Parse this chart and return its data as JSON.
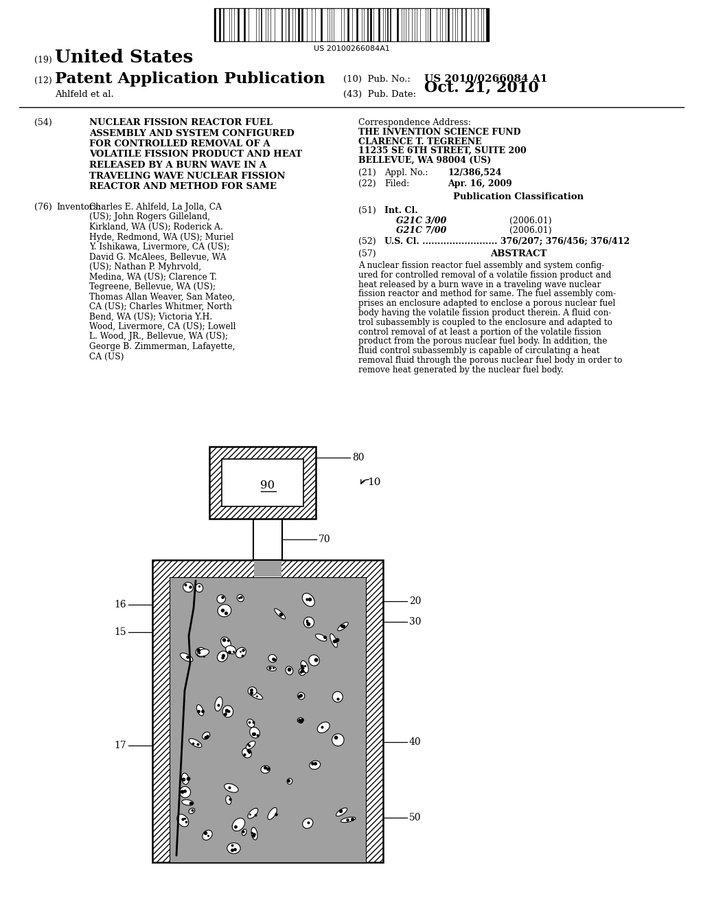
{
  "bg_color": "#ffffff",
  "barcode_text": "US 20100266084A1",
  "line19_label": "(19)",
  "united_states": "United States",
  "line12_label": "(12)",
  "patent_app_pub": "Patent Application Publication",
  "pub_no_label": "(10)  Pub. No.:",
  "pub_no_value": "US 2010/0266084 A1",
  "ahlfeld": "Ahlfeld et al.",
  "pub_date_label": "(43)  Pub. Date:",
  "pub_date_value": "Oct. 21, 2010",
  "title_num": "(54)",
  "title_lines": [
    "NUCLEAR FISSION REACTOR FUEL",
    "ASSEMBLY AND SYSTEM CONFIGURED",
    "FOR CONTROLLED REMOVAL OF A",
    "VOLATILE FISSION PRODUCT AND HEAT",
    "RELEASED BY A BURN WAVE IN A",
    "TRAVELING WAVE NUCLEAR FISSION",
    "REACTOR AND METHOD FOR SAME"
  ],
  "inventors_num": "(76)",
  "inventors_label": "Inventors:",
  "inventors_lines": [
    "Charles E. Ahlfeld, La Jolla, CA",
    "(US); John Rogers Gilleland,",
    "Kirkland, WA (US); Roderick A.",
    "Hyde, Redmond, WA (US); Muriel",
    "Y. Ishikawa, Livermore, CA (US);",
    "David G. McAlees, Bellevue, WA",
    "(US); Nathan P. Myhrvold,",
    "Medina, WA (US); Clarence T.",
    "Tegreene, Bellevue, WA (US);",
    "Thomas Allan Weaver, San Mateo,",
    "CA (US); Charles Whitmer, North",
    "Bend, WA (US); Victoria Y.H.",
    "Wood, Livermore, CA (US); Lowell",
    "L. Wood, JR., Bellevue, WA (US);",
    "George B. Zimmerman, Lafayette,",
    "CA (US)"
  ],
  "corr_addr_label": "Correspondence Address:",
  "corr_addr_lines": [
    "THE INVENTION SCIENCE FUND",
    "CLARENCE T. TEGREENE",
    "11235 SE 6TH STREET, SUITE 200",
    "BELLEVUE, WA 98004 (US)"
  ],
  "appl_num": "(21)",
  "appl_label": "Appl. No.:",
  "appl_value": "12/386,524",
  "filed_num": "(22)",
  "filed_label": "Filed:",
  "filed_value": "Apr. 16, 2009",
  "pub_class_header": "Publication Classification",
  "int_cl_num": "(51)",
  "int_cl_label": "Int. Cl.",
  "int_cl_g21c3": "G21C 3/00",
  "int_cl_g21c3_date": "(2006.01)",
  "int_cl_g21c7": "G21C 7/00",
  "int_cl_g21c7_date": "(2006.01)",
  "us_cl_num": "(52)",
  "us_cl_label": "U.S. Cl.",
  "us_cl_dots": " .........................",
  "us_cl_value": " 376/207; 376/456; 376/412",
  "abstract_num": "(57)",
  "abstract_label": "ABSTRACT",
  "abstract_lines": [
    "A nuclear fission reactor fuel assembly and system config-",
    "ured for controlled removal of a volatile fission product and",
    "heat released by a burn wave in a traveling wave nuclear",
    "fission reactor and method for same. The fuel assembly com-",
    "prises an enclosure adapted to enclose a porous nuclear fuel",
    "body having the volatile fission product therein. A fluid con-",
    "trol subassembly is coupled to the enclosure and adapted to",
    "control removal of at least a portion of the volatile fission",
    "product from the porous nuclear fuel body. In addition, the",
    "fluid control subassembly is capable of circulating a heat",
    "removal fluid through the porous nuclear fuel body in order to",
    "remove heat generated by the nuclear fuel body."
  ],
  "inner_fill_color": "#a0a0a0",
  "wall_hatch_color": "#000000"
}
